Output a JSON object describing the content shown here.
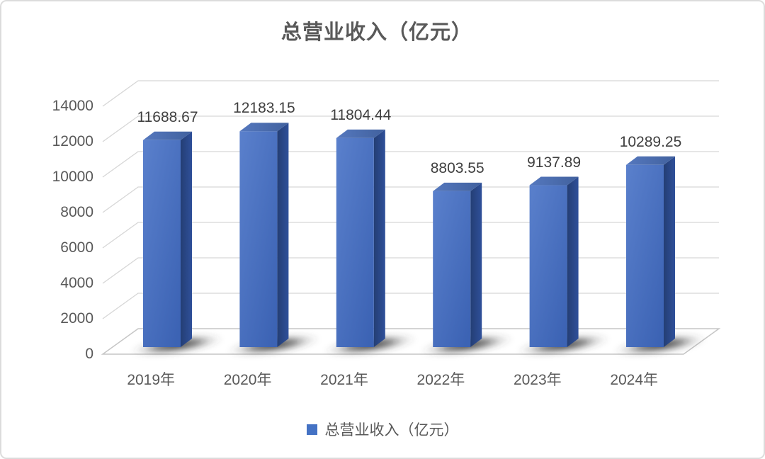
{
  "chart_data": {
    "type": "bar",
    "variant": "3d-column",
    "title": "总营业收入（亿元）",
    "categories": [
      "2019年",
      "2020年",
      "2021年",
      "2022年",
      "2023年",
      "2024年"
    ],
    "series": [
      {
        "name": "总营业收入（亿元）",
        "values": [
          11688.67,
          12183.15,
          11804.44,
          8803.55,
          9137.89,
          10289.25
        ]
      }
    ],
    "data_labels": [
      "11688.67",
      "12183.15",
      "11804.44",
      "8803.55",
      "9137.89",
      "10289.25"
    ],
    "xlabel": "",
    "ylabel": "",
    "y_axis": {
      "min": 0,
      "max": 14000,
      "step": 2000,
      "tick_labels": [
        "0",
        "2000",
        "4000",
        "6000",
        "8000",
        "10000",
        "12000",
        "14000"
      ]
    },
    "grid": true,
    "legend": {
      "position": "bottom",
      "items": [
        {
          "label": "总营业收入（亿元）",
          "swatch_color": "#4472C4"
        }
      ]
    },
    "colors": {
      "accent": "#4472C4",
      "bar_front_light": "#5A80CC",
      "bar_front_dark": "#3C63B4",
      "bar_top_light": "#5578BE",
      "bar_top_dark": "#41619E",
      "bar_side_dark": "#243E74",
      "bar_side_light": "#2F509A",
      "gridline": "#D6D6D6",
      "floor_stroke": "#C6C6C6",
      "title_text": "#595959",
      "axis_text": "#595959",
      "data_label_text": "#3F3F3F",
      "frame_border": "#DCDCDC",
      "background": "#FFFFFF"
    }
  }
}
